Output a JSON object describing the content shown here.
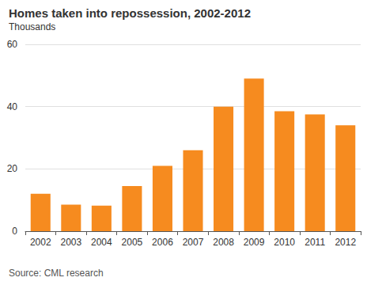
{
  "chart_data": {
    "type": "bar",
    "title": "Homes taken into repossession, 2002-2012",
    "subtitle": "Thousands",
    "annotations": [
      "Source: CML research"
    ],
    "categories": [
      "2002",
      "2003",
      "2004",
      "2005",
      "2006",
      "2007",
      "2008",
      "2009",
      "2010",
      "2011",
      "2012"
    ],
    "values": [
      12,
      8.5,
      8.2,
      14.5,
      21,
      26,
      40,
      49,
      38.5,
      37.5,
      34
    ],
    "color": "#f68b1f",
    "ylim": [
      0,
      60
    ],
    "yticks": [
      0,
      20,
      40,
      60
    ],
    "grid": true
  }
}
